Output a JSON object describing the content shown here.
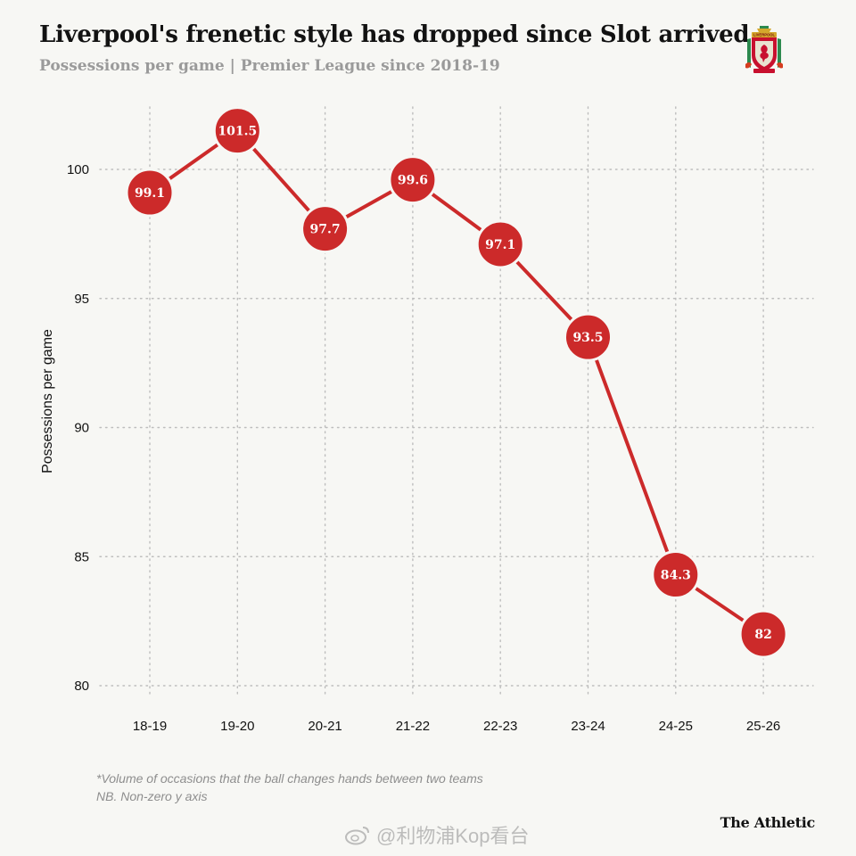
{
  "header": {
    "title": "Liverpool's frenetic style has dropped since Slot arrived",
    "subtitle": "Possessions per game | Premier League since 2018-19"
  },
  "logo": {
    "name": "liverpool-crest",
    "text": "LIVERPOOL"
  },
  "footnotes": {
    "line1": "*Volume of occasions that the ball changes hands between two teams",
    "line2": "NB. Non-zero y axis"
  },
  "brand": {
    "label": "The Athletic"
  },
  "watermark": {
    "text": "@利物浦Kop看台"
  },
  "colors": {
    "marker": "#cc2a2a",
    "line": "#cc2a2a",
    "background": "#f7f7f4",
    "grid": "#bdbdbd"
  },
  "chart_data": {
    "type": "line",
    "title": "Liverpool's frenetic style has dropped since Slot arrived",
    "subtitle": "Possessions per game | Premier League since 2018-19",
    "xlabel": "",
    "ylabel": "Possessions per game",
    "categories": [
      "18-19",
      "19-20",
      "20-21",
      "21-22",
      "22-23",
      "23-24",
      "24-25",
      "25-26"
    ],
    "series": [
      {
        "values": [
          99.1,
          101.5,
          97.7,
          99.6,
          97.1,
          93.5,
          84.3,
          82
        ],
        "labels": [
          "99.1",
          "101.5",
          "97.7",
          "99.6",
          "97.1",
          "93.5",
          "84.3",
          "82"
        ]
      }
    ],
    "yticks": [
      80,
      85,
      90,
      95,
      100
    ],
    "ytick_labels": [
      "80",
      "85",
      "90",
      "95",
      "100"
    ],
    "ylim": [
      80,
      102.5
    ],
    "grid": "dotted both axes",
    "legend": "none"
  }
}
